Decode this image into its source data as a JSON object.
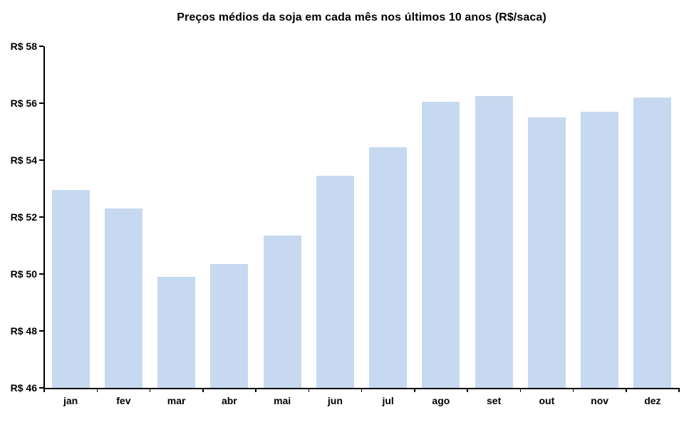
{
  "chart_data": {
    "type": "bar",
    "title": "Preços médios da soja em cada mês nos últimos 10 anos (R$/saca)",
    "categories": [
      "jan",
      "fev",
      "mar",
      "abr",
      "mai",
      "jun",
      "jul",
      "ago",
      "set",
      "out",
      "nov",
      "dez"
    ],
    "values": [
      52.95,
      52.3,
      49.9,
      50.35,
      51.35,
      53.45,
      54.45,
      56.05,
      56.25,
      55.5,
      55.7,
      56.2
    ],
    "xlabel": "",
    "ylabel": "",
    "ylim": [
      46,
      58
    ],
    "y_ticks": [
      46,
      48,
      50,
      52,
      54,
      56,
      58
    ],
    "y_tick_label_prefix": "R$ ",
    "grid": false,
    "legend": "none",
    "colors": {
      "bar_fill": "#C6D9F0",
      "axis": "#000000",
      "text": "#000000",
      "background": "#FFFFFF"
    }
  }
}
